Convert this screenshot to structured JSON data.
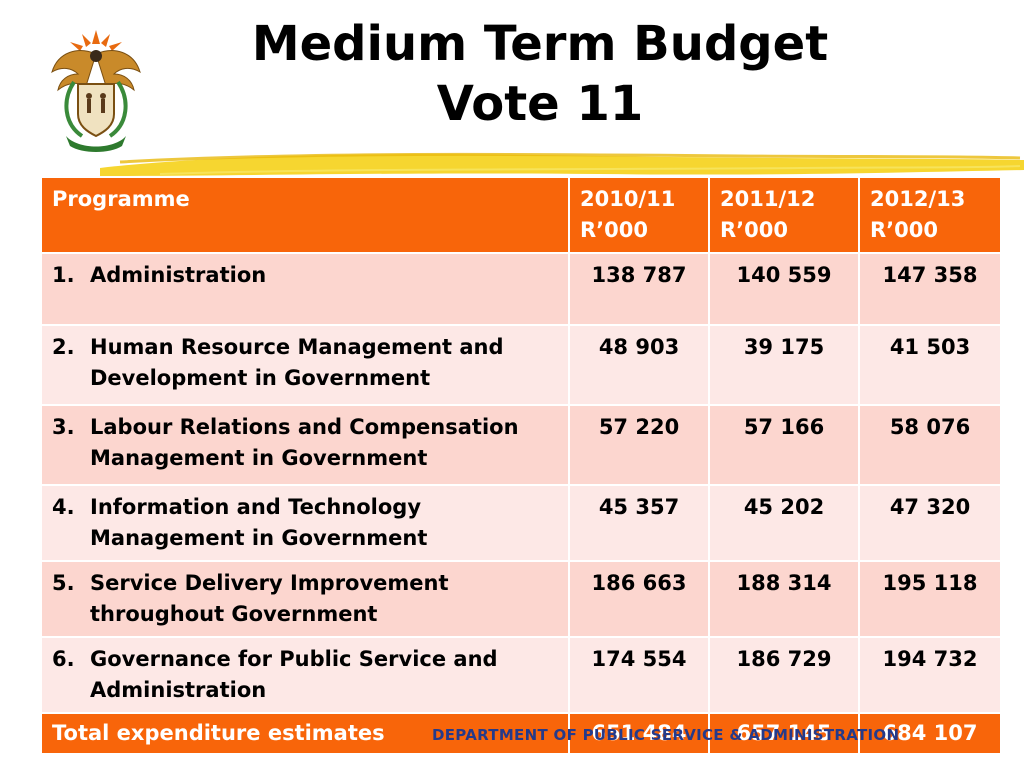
{
  "slide": {
    "title_line1": "Medium Term Budget",
    "title_line2": "Vote 11",
    "footer": "DEPARTMENT OF PUBLIC SERVICE & ADMINISTRATION"
  },
  "colors": {
    "header": "#f8650a",
    "row_odd": "#fcd6cf",
    "row_even": "#fde8e6",
    "footer_text": "#253a8a"
  },
  "table": {
    "headers": [
      {
        "line1": "Programme",
        "line2": ""
      },
      {
        "line1": "2010/11",
        "line2": "R’000"
      },
      {
        "line1": "2011/12",
        "line2": "R’000"
      },
      {
        "line1": "2012/13",
        "line2": "R’000"
      }
    ],
    "rows": [
      {
        "num": "1.",
        "label": "Administration",
        "v1": "138 787",
        "v2": "140 559",
        "v3": "147 358"
      },
      {
        "num": "2.",
        "label": "Human Resource Management and Development in Government",
        "v1": "48 903",
        "v2": "39 175",
        "v3": "41 503"
      },
      {
        "num": "3.",
        "label": "Labour Relations and Compensation Management in Government",
        "v1": "57 220",
        "v2": "57 166",
        "v3": "58 076"
      },
      {
        "num": "4.",
        "label": "Information and Technology Management in Government",
        "v1": "45 357",
        "v2": "45 202",
        "v3": "47 320"
      },
      {
        "num": "5.",
        "label": "Service Delivery Improvement throughout Government",
        "v1": "186 663",
        "v2": "188 314",
        "v3": "195 118"
      },
      {
        "num": "6.",
        "label": "Governance for Public Service and Administration",
        "v1": "174 554",
        "v2": "186 729",
        "v3": "194 732"
      }
    ],
    "total": {
      "label": "Total expenditure estimates",
      "v1": "651 484",
      "v2": "657 145",
      "v3": "684 107"
    }
  }
}
